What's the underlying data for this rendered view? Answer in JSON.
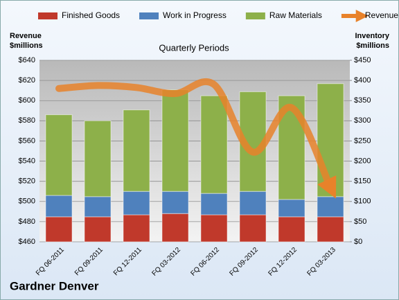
{
  "chart_data": {
    "type": "bar",
    "stacked": true,
    "title": "Gardner Denver",
    "subtitle": "Quarterly Periods",
    "y_label": [
      "Revenue",
      "$millions"
    ],
    "y2_label": [
      "Inventory",
      "$millions"
    ],
    "categories": [
      "FQ 06-2011",
      "FQ 09-2011",
      "FQ 12-2011",
      "FQ 03-2012",
      "FQ 06-2012",
      "FQ 09-2012",
      "FQ 12-2012",
      "FQ 03-2013"
    ],
    "series": [
      {
        "name": "Finished Goods",
        "color": "#c0392b",
        "axis": "y2",
        "values": [
          62,
          62,
          67,
          70,
          67,
          67,
          62,
          62
        ]
      },
      {
        "name": "Work in Progress",
        "color": "#4f81bd",
        "axis": "y2",
        "values": [
          53,
          50,
          58,
          55,
          53,
          58,
          43,
          50
        ]
      },
      {
        "name": "Raw Materials",
        "color": "#8db04a",
        "axis": "y2",
        "values": [
          200,
          188,
          202,
          252,
          242,
          247,
          257,
          280
        ]
      },
      {
        "name": "Revenue",
        "color": "#e8822a",
        "type": "line",
        "axis": "y",
        "values": [
          612,
          615,
          613,
          607,
          616,
          549,
          593,
          514
        ]
      }
    ],
    "ylim": [
      460,
      640
    ],
    "yticks": [
      {
        "value": 460,
        "label": "$460"
      },
      {
        "value": 480,
        "label": "$480"
      },
      {
        "value": 500,
        "label": "$500"
      },
      {
        "value": 520,
        "label": "$520"
      },
      {
        "value": 540,
        "label": "$540"
      },
      {
        "value": 560,
        "label": "$560"
      },
      {
        "value": 580,
        "label": "$580"
      },
      {
        "value": 600,
        "label": "$600"
      },
      {
        "value": 620,
        "label": "$620"
      },
      {
        "value": 640,
        "label": "$640"
      }
    ],
    "y2lim": [
      0,
      450
    ],
    "y2ticks": [
      {
        "value": 0,
        "label": "$0"
      },
      {
        "value": 50,
        "label": "$50"
      },
      {
        "value": 100,
        "label": "$100"
      },
      {
        "value": 150,
        "label": "$150"
      },
      {
        "value": 200,
        "label": "$200"
      },
      {
        "value": 250,
        "label": "$250"
      },
      {
        "value": 300,
        "label": "$300"
      },
      {
        "value": 350,
        "label": "$350"
      },
      {
        "value": 400,
        "label": "$400"
      },
      {
        "value": 450,
        "label": "$450"
      }
    ],
    "grid": true,
    "legend": "top"
  }
}
